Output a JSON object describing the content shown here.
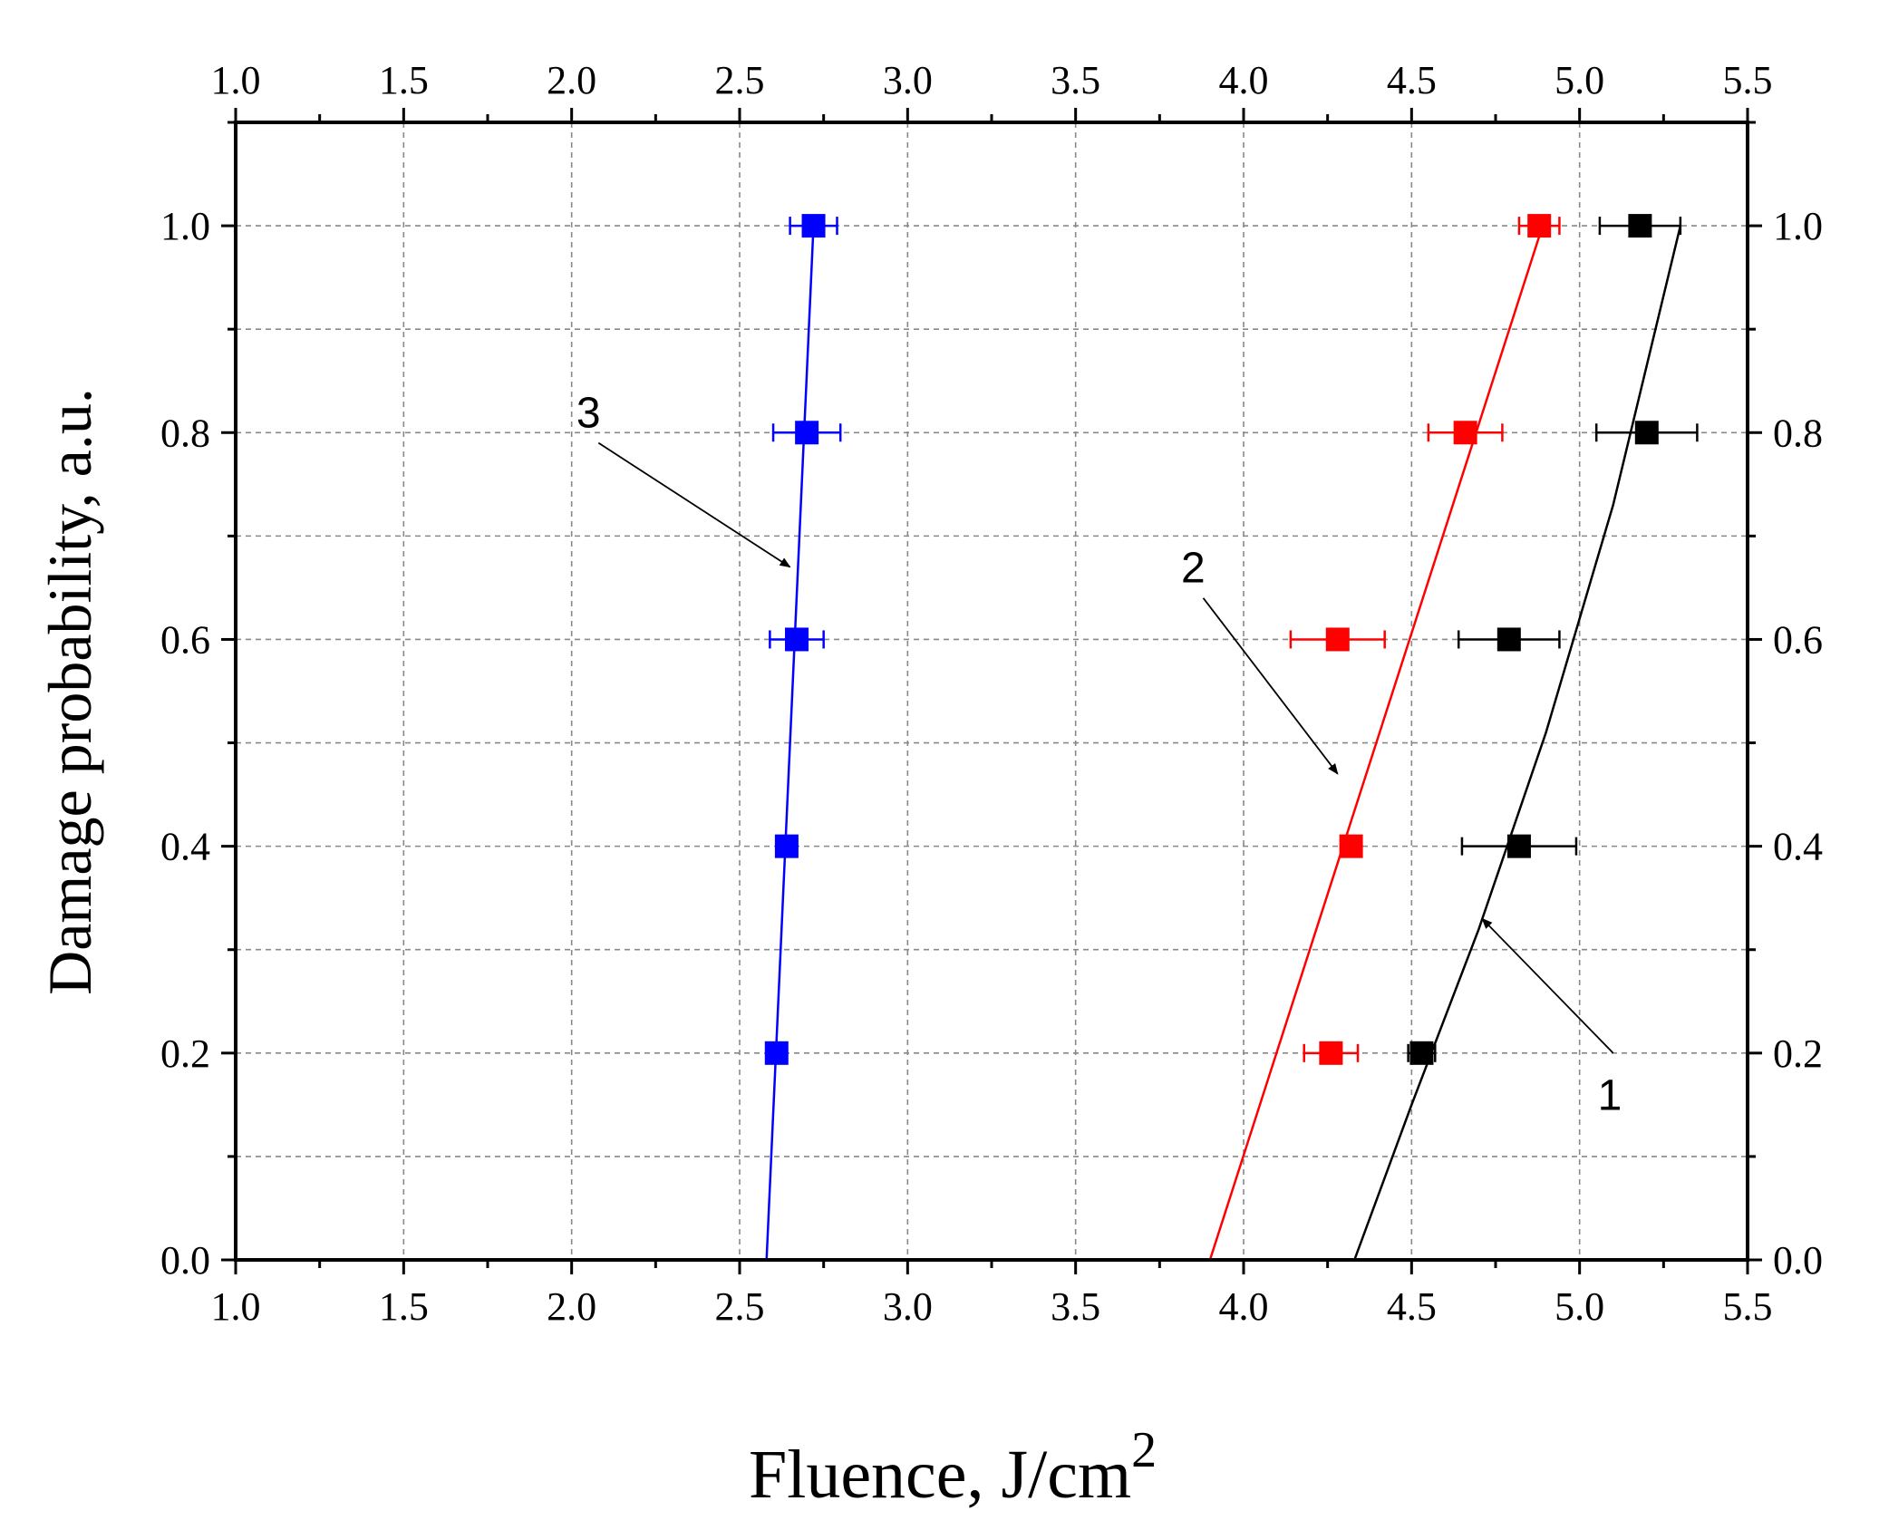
{
  "chart_data": {
    "type": "scatter",
    "title": "",
    "xlabel": "Fluence, J/cm",
    "xlabel_superscript": "2",
    "ylabel": "Damage probability, a.u.",
    "xlim": [
      1.0,
      5.5
    ],
    "ylim": [
      0.0,
      1.1
    ],
    "x_ticks": [
      "1.0",
      "1.5",
      "2.0",
      "2.5",
      "3.0",
      "3.5",
      "4.0",
      "4.5",
      "5.0",
      "5.5"
    ],
    "y_ticks": [
      "0.0",
      "0.2",
      "0.4",
      "0.6",
      "0.8",
      "1.0"
    ],
    "grid": true,
    "grid_style": "dashed",
    "mirror_axes": true,
    "series": [
      {
        "color": "#000000",
        "points": [
          {
            "x": 4.53,
            "y": 0.2,
            "xerr": 0.04
          },
          {
            "x": 4.82,
            "y": 0.4,
            "xerr": 0.17
          },
          {
            "x": 4.79,
            "y": 0.6,
            "xerr": 0.15
          },
          {
            "x": 5.2,
            "y": 0.8,
            "xerr": 0.15
          },
          {
            "x": 5.18,
            "y": 1.0,
            "xerr": 0.12
          }
        ],
        "fit": [
          [
            4.33,
            0.0
          ],
          [
            4.5,
            0.15
          ],
          [
            4.7,
            0.32
          ],
          [
            4.9,
            0.51
          ],
          [
            5.1,
            0.73
          ],
          [
            5.3,
            1.0
          ]
        ]
      },
      {
        "color": "#ff0000",
        "points": [
          {
            "x": 4.26,
            "y": 0.2,
            "xerr": 0.08
          },
          {
            "x": 4.32,
            "y": 0.4,
            "xerr": 0.03
          },
          {
            "x": 4.28,
            "y": 0.6,
            "xerr": 0.14
          },
          {
            "x": 4.66,
            "y": 0.8,
            "xerr": 0.11
          },
          {
            "x": 4.88,
            "y": 1.0,
            "xerr": 0.06
          }
        ],
        "fit": [
          [
            3.9,
            0.0
          ],
          [
            4.89,
            1.0
          ]
        ]
      },
      {
        "color": "#0000ff",
        "points": [
          {
            "x": 2.61,
            "y": 0.2,
            "xerr": 0.02
          },
          {
            "x": 2.64,
            "y": 0.4,
            "xerr": 0.02
          },
          {
            "x": 2.67,
            "y": 0.6,
            "xerr": 0.08
          },
          {
            "x": 2.7,
            "y": 0.8,
            "xerr": 0.1
          },
          {
            "x": 2.72,
            "y": 1.0,
            "xerr": 0.07
          }
        ],
        "fit": [
          [
            2.58,
            0.0
          ],
          [
            2.72,
            1.0
          ]
        ]
      }
    ],
    "annotations": [
      {
        "text": "1",
        "label_x": 5.09,
        "label_y": 0.145,
        "arrow_from": [
          5.1,
          0.2
        ],
        "arrow_to": [
          4.71,
          0.33
        ]
      },
      {
        "text": "2",
        "label_x": 3.85,
        "label_y": 0.655,
        "arrow_from": [
          3.88,
          0.64
        ],
        "arrow_to": [
          4.28,
          0.47
        ]
      },
      {
        "text": "3",
        "label_x": 2.05,
        "label_y": 0.805,
        "arrow_from": [
          2.08,
          0.79
        ],
        "arrow_to": [
          2.65,
          0.67
        ]
      }
    ]
  }
}
